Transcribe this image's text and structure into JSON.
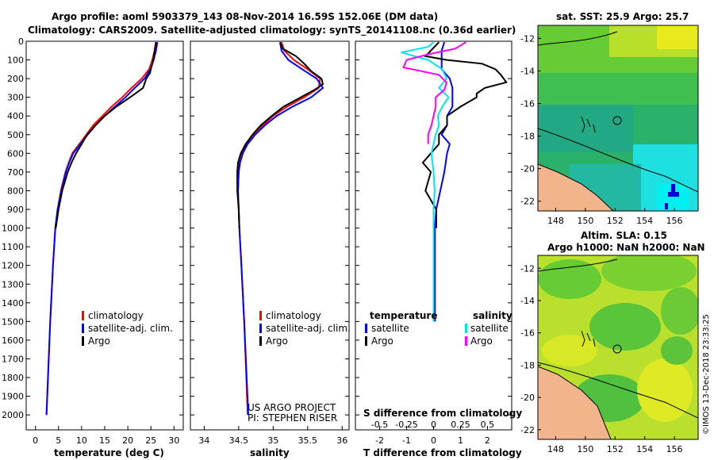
{
  "header": {
    "title_line1": "Argo profile: aoml 5903379_143 08-Nov-2014 16.59S 152.06E (DM data)",
    "title_line2": "Climatology: CARS2009. Satellite-adjusted climatology: synTS_20141108.nc (0.36d earlier)"
  },
  "colors": {
    "climatology": "#ff0000",
    "satellite": "#0000ff",
    "argo": "#000000",
    "sat_salinity": "#00e5e5",
    "argo_salinity": "#ff00ff",
    "land": "#f2b48a"
  },
  "chart_data": [
    {
      "type": "line",
      "name": "temperature",
      "xlabel": "temperature (deg C)",
      "xticks": [
        "0",
        "5",
        "10",
        "15",
        "20",
        "25",
        "30"
      ],
      "xlim": [
        -2,
        32
      ],
      "ylim": [
        2080,
        0
      ],
      "yticks": [
        "0",
        "100",
        "200",
        "300",
        "400",
        "500",
        "600",
        "700",
        "800",
        "900",
        "1000",
        "1100",
        "1200",
        "1300",
        "1400",
        "1500",
        "1600",
        "1700",
        "1800",
        "1900",
        "2000"
      ],
      "legend": [
        "climatology",
        "satellite-adj. clim.",
        "Argo"
      ],
      "series": [
        {
          "name": "climatology",
          "color": "#ff0000",
          "depth": [
            5,
            50,
            100,
            150,
            200,
            250,
            300,
            350,
            400,
            450,
            500,
            550,
            600,
            650,
            700,
            800,
            900,
            1000,
            1200,
            1500,
            2000
          ],
          "values": [
            26.0,
            25.8,
            25.3,
            24.6,
            23.0,
            20.8,
            18.8,
            16.5,
            14.5,
            12.5,
            11.0,
            9.5,
            8.0,
            7.2,
            6.5,
            5.5,
            4.8,
            4.3,
            3.8,
            3.2,
            2.4
          ]
        },
        {
          "name": "satellite-adj. clim.",
          "color": "#0000ff",
          "depth": [
            5,
            50,
            100,
            150,
            200,
            250,
            300,
            350,
            400,
            450,
            500,
            550,
            600,
            650,
            700,
            800,
            900,
            1000,
            1200,
            1500,
            2000
          ],
          "values": [
            26.4,
            26.1,
            25.6,
            24.9,
            23.6,
            21.5,
            19.5,
            17.2,
            15.0,
            13.0,
            11.3,
            9.7,
            8.2,
            7.3,
            6.6,
            5.6,
            4.8,
            4.3,
            3.8,
            3.2,
            2.4
          ]
        },
        {
          "name": "Argo",
          "color": "#000000",
          "depth": [
            5,
            50,
            100,
            150,
            170,
            200,
            250,
            300,
            350,
            400,
            450,
            500,
            550,
            600,
            650,
            700,
            800,
            900,
            1000
          ],
          "values": [
            26.2,
            25.8,
            25.5,
            25.0,
            24.8,
            24.0,
            23.3,
            20.5,
            17.5,
            15.0,
            13.0,
            11.2,
            10.0,
            8.8,
            7.8,
            7.0,
            5.8,
            5.0,
            4.4
          ]
        }
      ]
    },
    {
      "type": "line",
      "name": "salinity",
      "xlabel": "salinity",
      "xticks": [
        "34",
        "34.5",
        "35",
        "35.5",
        "36"
      ],
      "xlim": [
        33.8,
        36.1
      ],
      "ylim": [
        2080,
        0
      ],
      "legend": [
        "climatology",
        "satellite-adj. clim.",
        "Argo"
      ],
      "series": [
        {
          "name": "climatology",
          "color": "#ff0000",
          "depth": [
            5,
            50,
            100,
            150,
            200,
            250,
            300,
            350,
            400,
            450,
            500,
            550,
            600,
            650,
            700,
            800,
            900,
            1000,
            1200,
            1500,
            2000
          ],
          "values": [
            35.12,
            35.16,
            35.3,
            35.5,
            35.68,
            35.66,
            35.45,
            35.2,
            35.0,
            34.85,
            34.72,
            34.62,
            34.55,
            34.51,
            34.5,
            34.49,
            34.5,
            34.51,
            34.54,
            34.58,
            34.63
          ]
        },
        {
          "name": "satellite-adj. clim.",
          "color": "#0000ff",
          "depth": [
            5,
            50,
            100,
            150,
            200,
            250,
            300,
            350,
            400,
            450,
            500,
            550,
            600,
            650,
            700,
            800,
            900,
            1000,
            1200,
            1500,
            2000
          ],
          "values": [
            35.1,
            35.12,
            35.22,
            35.42,
            35.63,
            35.72,
            35.55,
            35.28,
            35.05,
            34.88,
            34.74,
            34.63,
            34.56,
            34.52,
            34.5,
            34.49,
            34.5,
            34.51,
            34.54,
            34.58,
            34.64
          ]
        },
        {
          "name": "Argo",
          "color": "#000000",
          "depth": [
            5,
            40,
            80,
            120,
            160,
            200,
            230,
            260,
            300,
            350,
            400,
            450,
            500,
            550,
            600,
            650,
            700,
            800,
            900,
            1000
          ],
          "values": [
            35.1,
            35.14,
            35.33,
            35.45,
            35.55,
            35.7,
            35.72,
            35.6,
            35.4,
            35.15,
            34.98,
            34.82,
            34.7,
            34.6,
            34.53,
            34.49,
            34.48,
            34.48,
            34.5,
            34.51
          ]
        }
      ]
    },
    {
      "type": "line",
      "name": "differences",
      "xlabel": "T difference from climatology",
      "xlabel_top": "S difference from climatology",
      "xticks": [
        "-2",
        "-1",
        "0",
        "1",
        "2"
      ],
      "xticks_s": [
        "-0.5",
        "-0.25",
        "0",
        "0.25",
        "0.5"
      ],
      "xlim": [
        -2.9,
        2.9
      ],
      "ylim": [
        2080,
        0
      ],
      "legend_headers": [
        "temperature",
        "salinity"
      ],
      "legend": [
        "satellite",
        "Argo",
        "satellite",
        "Argo"
      ],
      "series": [
        {
          "name": "T satellite",
          "color": "#0000ff",
          "depth": [
            5,
            50,
            100,
            150,
            200,
            250,
            300,
            350,
            400,
            450,
            500,
            550,
            600,
            650,
            700,
            800,
            900,
            1000,
            1200,
            1500
          ],
          "values": [
            0.4,
            0.3,
            0.3,
            0.3,
            0.6,
            0.7,
            0.7,
            0.7,
            0.5,
            0.5,
            0.3,
            0.6,
            0.5,
            0.45,
            0.4,
            0.25,
            0.1,
            0.05,
            0.05,
            0.05
          ]
        },
        {
          "name": "T Argo",
          "color": "#000000",
          "depth": [
            5,
            50,
            80,
            100,
            120,
            150,
            180,
            220,
            250,
            280,
            300,
            350,
            400,
            450,
            500,
            550,
            600,
            650,
            700,
            800,
            900,
            1000
          ],
          "values": [
            0.2,
            -0.1,
            -0.3,
            0.5,
            1.8,
            2.3,
            2.5,
            2.7,
            1.9,
            1.6,
            1.6,
            1.0,
            0.5,
            0.5,
            0.2,
            0.2,
            -0.1,
            -0.4,
            -0.1,
            -0.3,
            0.1,
            0.1
          ]
        },
        {
          "name": "S satellite",
          "color": "#00e5e5",
          "depth": [
            5,
            30,
            60,
            100,
            150,
            200,
            250,
            300,
            350,
            400,
            450,
            500,
            550,
            600,
            700,
            800,
            900,
            1000,
            1200,
            1500
          ],
          "values": [
            0.0,
            -0.05,
            -0.3,
            -0.05,
            0.08,
            0.12,
            0.05,
            0.14,
            0.08,
            0.04,
            0.05,
            0.02,
            0.0,
            -0.02,
            0.0,
            0.01,
            0.0,
            0.0,
            0.0,
            0.0
          ]
        },
        {
          "name": "S Argo",
          "color": "#ff00ff",
          "depth": [
            5,
            40,
            70,
            100,
            140,
            180,
            220,
            260,
            300,
            350,
            400,
            450,
            500,
            550
          ],
          "values": [
            0.3,
            0.2,
            -0.05,
            -0.25,
            -0.28,
            0.05,
            0.12,
            0.1,
            0.02,
            0.02,
            0.0,
            -0.02,
            -0.05,
            -0.05
          ]
        }
      ]
    }
  ],
  "annotations": {
    "project_line1": "US ARGO PROJECT",
    "project_line2": "PI: STEPHEN RISER"
  },
  "maps": {
    "sst": {
      "title": "sat. SST: 25.9 Argo: 25.7",
      "xticks": [
        "148",
        "150",
        "152",
        "154",
        "156"
      ],
      "yticks": [
        "-12",
        "-14",
        "-16",
        "-18",
        "-20",
        "-22"
      ]
    },
    "sla": {
      "title_line1": "Altim. SLA: 0.15",
      "title_line2": "Argo h1000: NaN h2000: NaN",
      "xticks": [
        "148",
        "150",
        "152",
        "154",
        "156"
      ],
      "yticks": [
        "-12",
        "-14",
        "-16",
        "-18",
        "-20",
        "-22"
      ]
    }
  },
  "footer": {
    "stamp": "©IMOS 13-Dec-2018 23:33:25"
  }
}
